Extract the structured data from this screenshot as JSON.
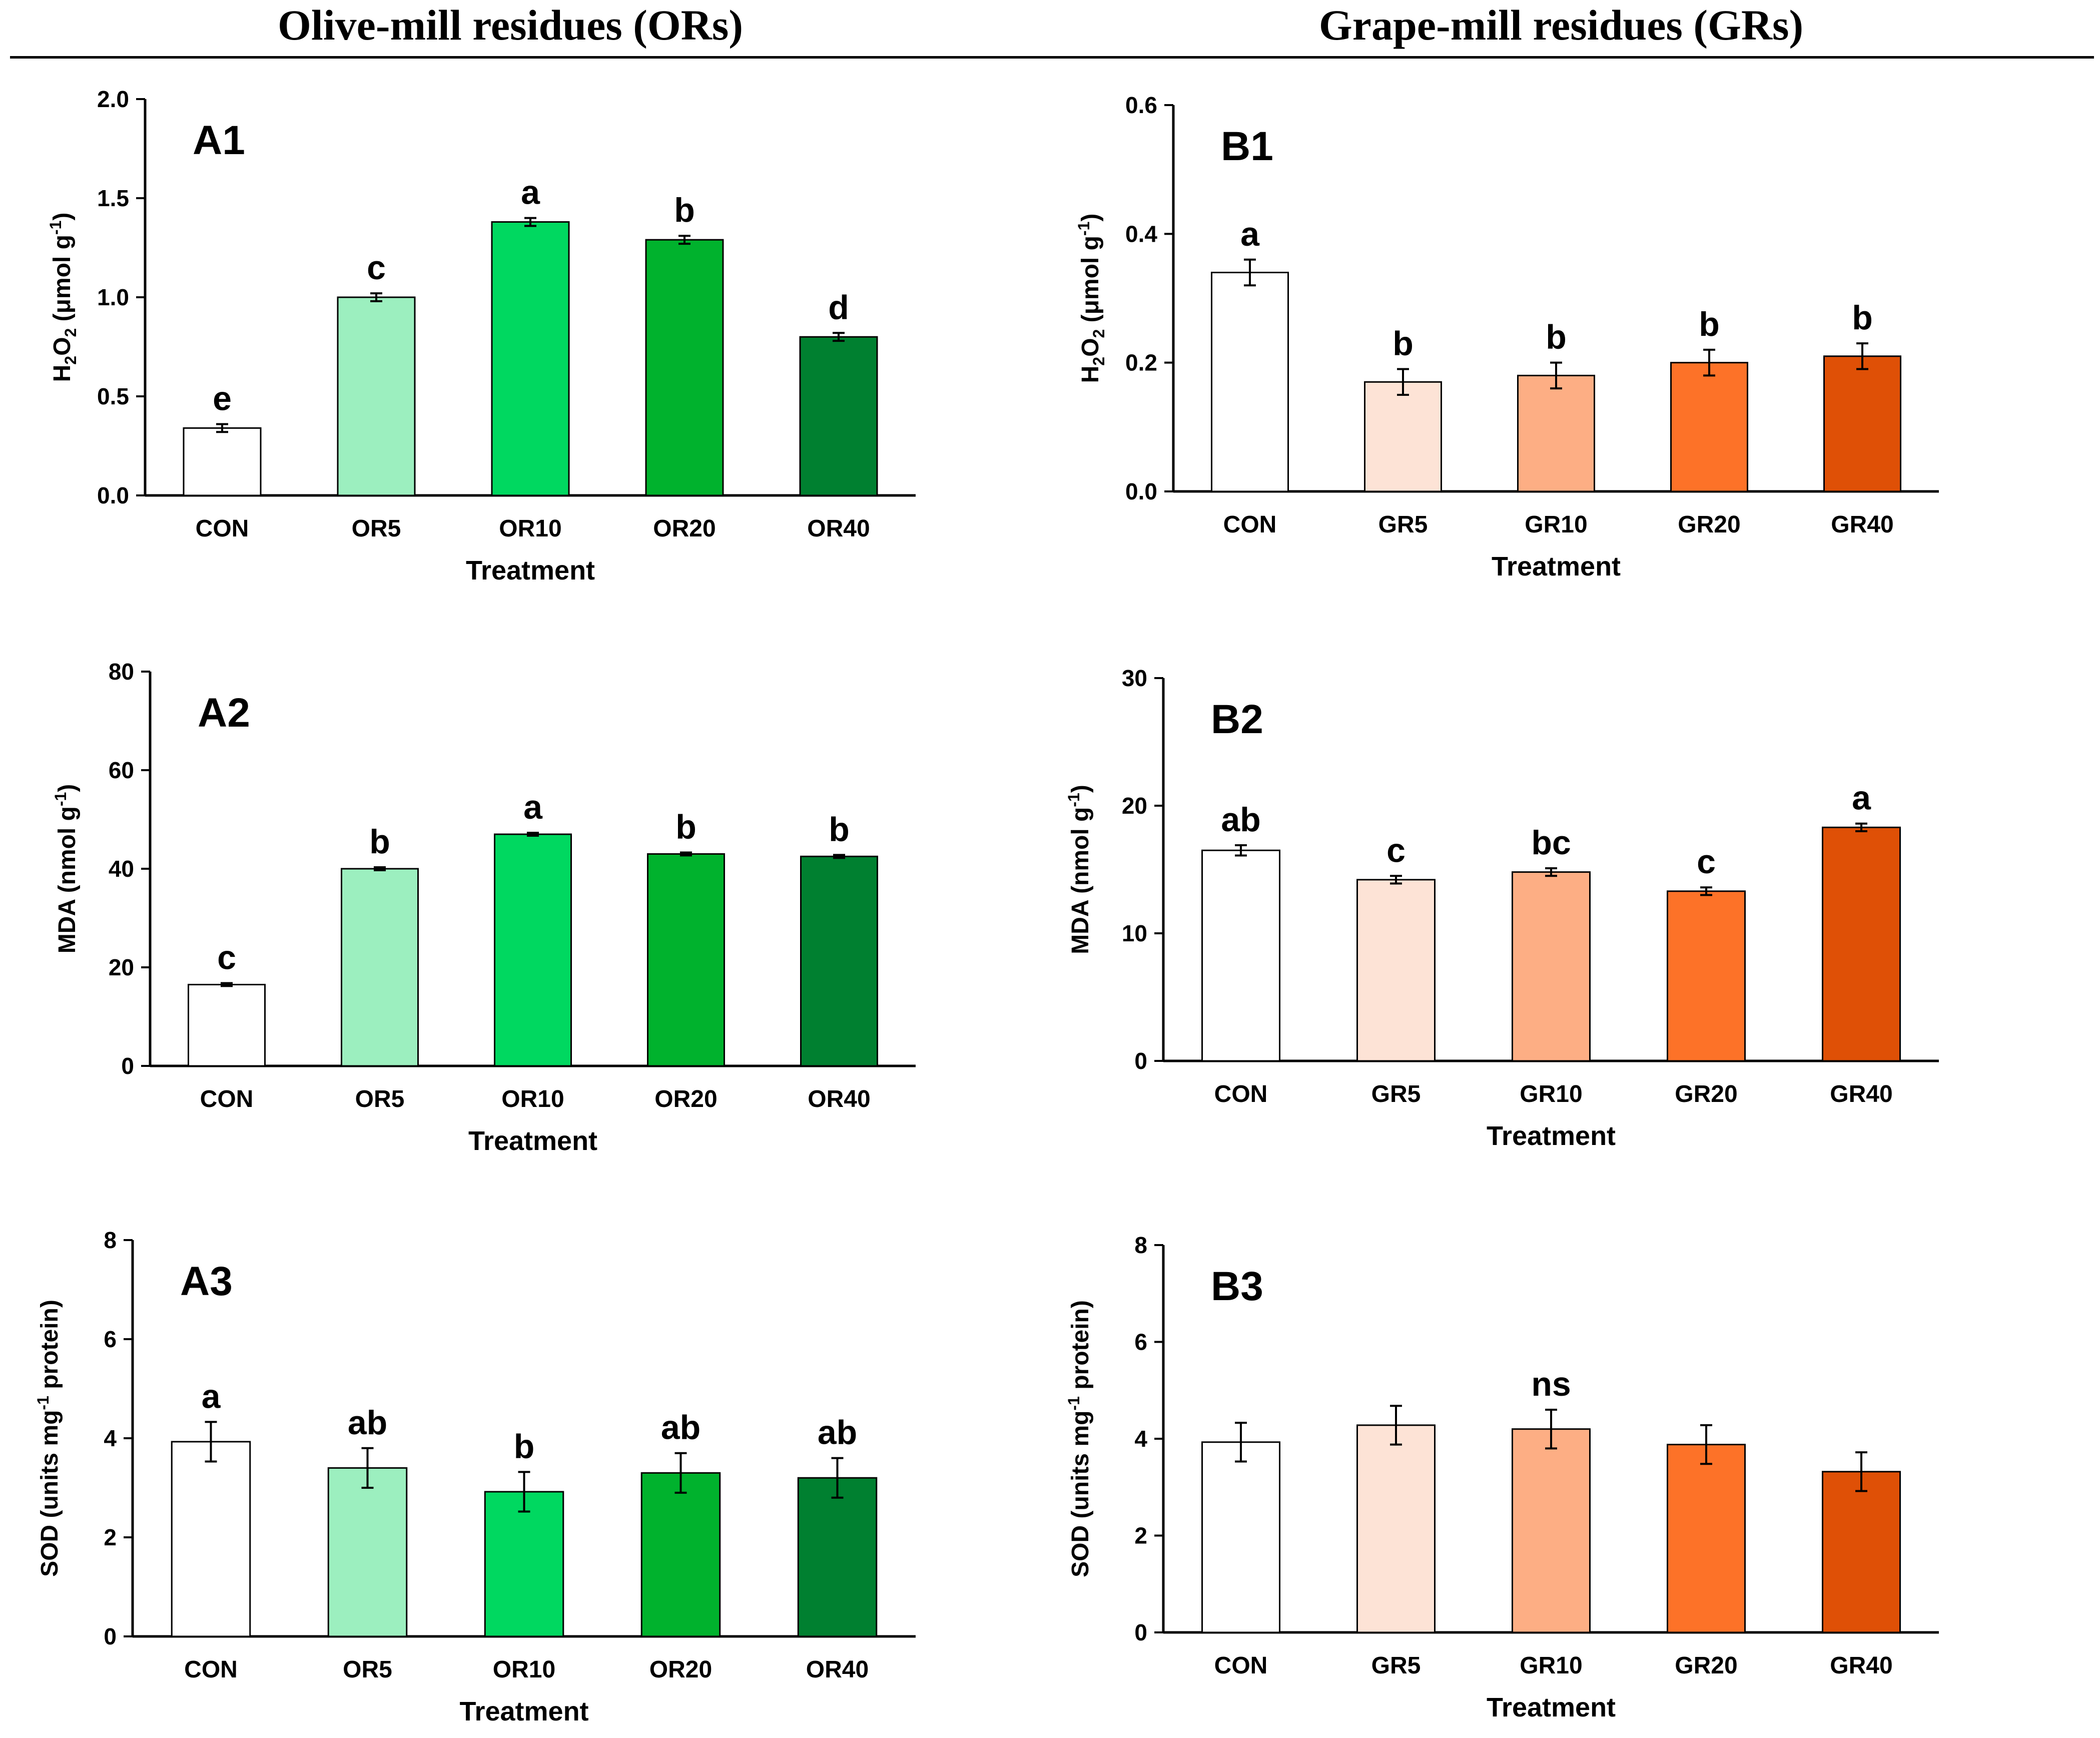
{
  "headers": {
    "left": "Olive-mill residues (ORs)",
    "right": "Grape-mill residues (GRs)"
  },
  "colors": {
    "or": [
      "#ffffff",
      "#9cefbf",
      "#00d860",
      "#00b22d",
      "#008030"
    ],
    "gr": [
      "#ffffff",
      "#fde3d6",
      "#fdae84",
      "#fd7228",
      "#df5006"
    ]
  },
  "chart_data": [
    {
      "id": "A1",
      "type": "bar",
      "panel_label": "A1",
      "group": "or",
      "title": "",
      "categories": [
        "CON",
        "OR5",
        "OR10",
        "OR20",
        "OR40"
      ],
      "values": [
        0.34,
        1.0,
        1.38,
        1.29,
        0.8
      ],
      "errors": [
        0.02,
        0.02,
        0.02,
        0.02,
        0.02
      ],
      "letters": [
        "e",
        "c",
        "a",
        "b",
        "d"
      ],
      "xlabel": "Treatment",
      "ylabel": {
        "pre": "H",
        "sub": "2",
        "mid": "O",
        "sub2": "2",
        "post": " (μmol g",
        "sup": "-1",
        "end": ")"
      },
      "ylim": [
        0,
        2.0
      ],
      "yticks": [
        "0.0",
        "0.5",
        "1.0",
        "1.5",
        "2.0"
      ]
    },
    {
      "id": "B1",
      "type": "bar",
      "panel_label": "B1",
      "group": "gr",
      "title": "",
      "categories": [
        "CON",
        "GR5",
        "GR10",
        "GR20",
        "GR40"
      ],
      "values": [
        0.34,
        0.17,
        0.18,
        0.2,
        0.21
      ],
      "errors": [
        0.02,
        0.02,
        0.02,
        0.02,
        0.02
      ],
      "letters": [
        "a",
        "b",
        "b",
        "b",
        "b"
      ],
      "xlabel": "Treatment",
      "ylabel": {
        "pre": "H",
        "sub": "2",
        "mid": "O",
        "sub2": "2",
        "post": " (μmol g",
        "sup": "-1",
        "end": ")"
      },
      "ylim": [
        0,
        0.6
      ],
      "yticks": [
        "0.0",
        "0.2",
        "0.4",
        "0.6"
      ]
    },
    {
      "id": "A2",
      "type": "bar",
      "panel_label": "A2",
      "group": "or",
      "title": "",
      "categories": [
        "CON",
        "OR5",
        "OR10",
        "OR20",
        "OR40"
      ],
      "values": [
        16.5,
        40.0,
        47.0,
        43.0,
        42.5
      ],
      "errors": [
        0.3,
        0.3,
        0.3,
        0.3,
        0.3
      ],
      "letters": [
        "c",
        "b",
        "a",
        "b",
        "b"
      ],
      "xlabel": "Treatment",
      "ylabel": {
        "pre": "MDA (nmol g",
        "sup": "-1",
        "end": ")"
      },
      "ylim": [
        0,
        80
      ],
      "yticks": [
        "0",
        "20",
        "40",
        "60",
        "80"
      ]
    },
    {
      "id": "B2",
      "type": "bar",
      "panel_label": "B2",
      "group": "gr",
      "title": "",
      "categories": [
        "CON",
        "GR5",
        "GR10",
        "GR20",
        "GR40"
      ],
      "values": [
        16.5,
        14.2,
        14.8,
        13.3,
        18.3
      ],
      "errors": [
        0.4,
        0.3,
        0.3,
        0.3,
        0.3
      ],
      "letters": [
        "ab",
        "c",
        "bc",
        "c",
        "a"
      ],
      "xlabel": "Treatment",
      "ylabel": {
        "pre": "MDA (nmol g",
        "sup": "-1",
        "end": ")"
      },
      "ylim": [
        0,
        30
      ],
      "yticks": [
        "0",
        "10",
        "20",
        "30"
      ]
    },
    {
      "id": "A3",
      "type": "bar",
      "panel_label": "A3",
      "group": "or",
      "title": "",
      "categories": [
        "CON",
        "OR5",
        "OR10",
        "OR20",
        "OR40"
      ],
      "values": [
        3.93,
        3.4,
        2.92,
        3.3,
        3.2
      ],
      "errors": [
        0.4,
        0.4,
        0.4,
        0.4,
        0.4
      ],
      "letters": [
        "a",
        "ab",
        "b",
        "ab",
        "ab"
      ],
      "xlabel": "Treatment",
      "ylabel": {
        "pre": "SOD (units mg",
        "sup": "-1",
        "end": " protein)"
      },
      "ylim": [
        0,
        8
      ],
      "yticks": [
        "0",
        "2",
        "4",
        "6",
        "8"
      ]
    },
    {
      "id": "B3",
      "type": "bar",
      "panel_label": "B3",
      "group": "gr",
      "title": "",
      "categories": [
        "CON",
        "GR5",
        "GR10",
        "GR20",
        "GR40"
      ],
      "values": [
        3.93,
        4.28,
        4.2,
        3.88,
        3.32
      ],
      "errors": [
        0.4,
        0.4,
        0.4,
        0.4,
        0.4
      ],
      "letters": [
        "",
        "",
        "ns",
        "",
        ""
      ],
      "xlabel": "Treatment",
      "ylabel": {
        "pre": "SOD (units mg",
        "sup": "-1",
        "end": " protein)"
      },
      "ylim": [
        0,
        8
      ],
      "yticks": [
        "0",
        "2",
        "4",
        "6",
        "8"
      ]
    }
  ]
}
